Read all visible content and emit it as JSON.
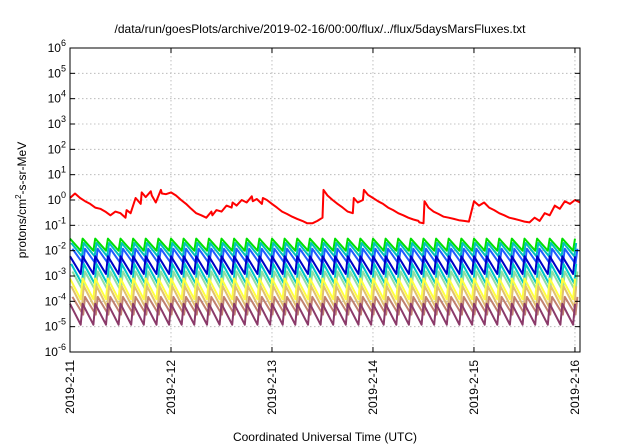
{
  "chart_data": {
    "type": "line",
    "title": "/data/run/goesPlots/archive/2019-02-16/00:00/flux/../flux/5daysMarsFluxes.txt",
    "xlabel": "Coordinated Universal Time (UTC)",
    "ylabel": "protons/cm²-s-sr-MeV",
    "ylabel_parts": {
      "base": "protons/cm",
      "sup": "2",
      "rest": "-s-sr-MeV"
    },
    "x_ticks": [
      "2019-2-11",
      "2019-2-12",
      "2019-2-13",
      "2019-2-14",
      "2019-2-15",
      "2019-2-16"
    ],
    "xlim": [
      0,
      5.05
    ],
    "y_scale": "log",
    "ylim": [
      1e-06,
      1000000.0
    ],
    "y_ticks": [
      {
        "base": "10",
        "exp": "-6"
      },
      {
        "base": "10",
        "exp": "-5"
      },
      {
        "base": "10",
        "exp": "-4"
      },
      {
        "base": "10",
        "exp": "-3"
      },
      {
        "base": "10",
        "exp": "-2"
      },
      {
        "base": "10",
        "exp": "-1"
      },
      {
        "base": "10",
        "exp": "0"
      },
      {
        "base": "10",
        "exp": "1"
      },
      {
        "base": "10",
        "exp": "2"
      },
      {
        "base": "10",
        "exp": "3"
      },
      {
        "base": "10",
        "exp": "4"
      },
      {
        "base": "10",
        "exp": "5"
      },
      {
        "base": "10",
        "exp": "6"
      }
    ],
    "grid": true,
    "legend": "none",
    "sawtooth_series": {
      "period_days": 0.125,
      "lines": [
        {
          "color": "#00e000",
          "peak": 0.03,
          "trough": 0.01
        },
        {
          "color": "#00bfbf",
          "peak": 0.02,
          "trough": 0.006
        },
        {
          "color": "#1f5bff",
          "peak": 0.012,
          "trough": 0.003
        },
        {
          "color": "#0000c8",
          "peak": 0.006,
          "trough": 0.0012
        },
        {
          "color": "#00c8c8",
          "peak": 0.003,
          "trough": 0.0005
        },
        {
          "color": "#90e0a0",
          "peak": 0.0015,
          "trough": 0.00025
        },
        {
          "color": "#ffff40",
          "peak": 0.0008,
          "trough": 0.00012
        },
        {
          "color": "#e0c070",
          "peak": 0.0004,
          "trough": 6e-05
        },
        {
          "color": "#c08070",
          "peak": 0.00015,
          "trough": 3e-05
        },
        {
          "color": "#8b3a6a",
          "peak": 8e-05,
          "trough": 1.2e-05
        }
      ]
    },
    "series": [
      {
        "color": "#ff0000",
        "x": [
          0.0,
          0.05,
          0.1,
          0.15,
          0.2,
          0.25,
          0.3,
          0.35,
          0.4,
          0.45,
          0.5,
          0.55,
          0.56,
          0.6,
          0.65,
          0.7,
          0.71,
          0.75,
          0.8,
          0.81,
          0.85,
          0.9,
          0.91,
          0.95,
          1.0,
          1.05,
          1.1,
          1.15,
          1.2,
          1.25,
          1.3,
          1.35,
          1.4,
          1.41,
          1.45,
          1.5,
          1.55,
          1.6,
          1.61,
          1.65,
          1.7,
          1.75,
          1.8,
          1.81,
          1.85,
          1.9,
          1.91,
          1.95,
          2.0,
          2.05,
          2.1,
          2.15,
          2.2,
          2.25,
          2.3,
          2.35,
          2.4,
          2.45,
          2.5,
          2.51,
          2.55,
          2.6,
          2.65,
          2.7,
          2.75,
          2.8,
          2.81,
          2.85,
          2.9,
          2.91,
          2.95,
          3.0,
          3.05,
          3.1,
          3.15,
          3.2,
          3.25,
          3.3,
          3.35,
          3.4,
          3.45,
          3.46,
          3.5,
          3.51,
          3.55,
          3.6,
          3.65,
          3.7,
          3.75,
          3.8,
          3.85,
          3.9,
          3.95,
          4.0,
          4.05,
          4.1,
          4.15,
          4.2,
          4.25,
          4.3,
          4.35,
          4.4,
          4.45,
          4.5,
          4.55,
          4.6,
          4.65,
          4.7,
          4.75,
          4.8,
          4.85,
          4.9,
          4.95,
          5.0,
          5.05
        ],
        "y": [
          1.2,
          1.8,
          1.2,
          0.9,
          0.7,
          0.5,
          0.45,
          0.35,
          0.25,
          0.35,
          0.3,
          0.2,
          0.4,
          0.3,
          1.2,
          0.7,
          2.0,
          1.3,
          2.2,
          1.5,
          0.8,
          2.5,
          1.8,
          1.7,
          2.0,
          1.5,
          1.0,
          0.7,
          0.45,
          0.3,
          0.25,
          0.2,
          0.35,
          0.25,
          0.4,
          0.35,
          0.6,
          0.5,
          0.8,
          0.6,
          1.0,
          0.8,
          1.4,
          0.9,
          1.1,
          0.7,
          1.2,
          1.0,
          0.7,
          0.5,
          0.35,
          0.28,
          0.22,
          0.18,
          0.15,
          0.12,
          0.12,
          0.15,
          0.2,
          2.5,
          1.5,
          1.0,
          0.7,
          0.5,
          0.35,
          0.3,
          1.2,
          0.8,
          1.0,
          2.5,
          1.6,
          1.2,
          0.9,
          0.7,
          0.5,
          0.4,
          0.3,
          0.25,
          0.2,
          0.17,
          0.15,
          0.13,
          0.12,
          0.9,
          0.5,
          0.35,
          0.28,
          0.22,
          0.2,
          0.18,
          0.16,
          0.15,
          0.14,
          0.9,
          0.6,
          0.8,
          0.5,
          0.4,
          0.3,
          0.25,
          0.2,
          0.18,
          0.16,
          0.14,
          0.13,
          0.2,
          0.15,
          0.3,
          0.25,
          0.6,
          0.45,
          0.9,
          0.7,
          1.0,
          0.8
        ]
      }
    ]
  }
}
